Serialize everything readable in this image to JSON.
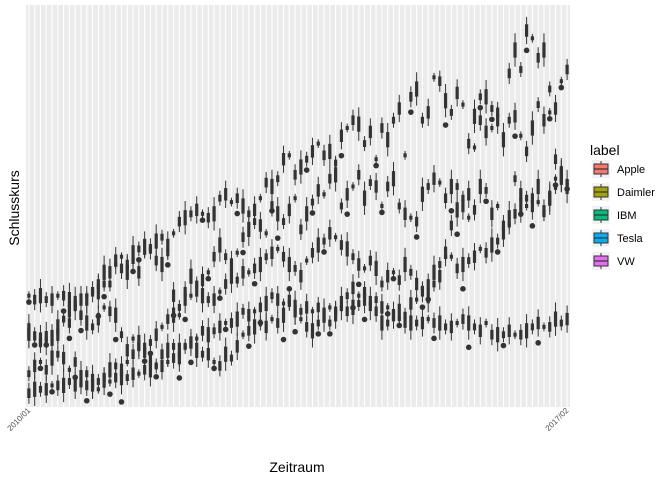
{
  "chart_data": {
    "type": "boxplot",
    "title": "",
    "xlabel": "Zeitraum",
    "ylabel": "Schlusskurs",
    "legend": {
      "title": "label",
      "placement": "right",
      "items": [
        {
          "name": "Apple",
          "color": "#F8766D"
        },
        {
          "name": "Daimler",
          "color": "#A3A500"
        },
        {
          "name": "IBM",
          "color": "#00BF7D"
        },
        {
          "name": "Tesla",
          "color": "#00B0F6"
        },
        {
          "name": "VW",
          "color": "#E76BF3"
        }
      ]
    },
    "grid": true,
    "panel_background": "#EBEBEB",
    "box_color": "#333333",
    "x_categories_count": 94,
    "x_tick_labels_first": "2010/01",
    "x_tick_labels_last": "2017/02",
    "y_range": [
      0,
      100
    ],
    "series": [
      {
        "name": "VW",
        "values": [
          27,
          26,
          27,
          26,
          26,
          27,
          27,
          26,
          25,
          26,
          27,
          28,
          28,
          30,
          33,
          35,
          34,
          33,
          36,
          33,
          38,
          39,
          41,
          42,
          40,
          43,
          46,
          47,
          48,
          49,
          48,
          47,
          48,
          52,
          53,
          51,
          52,
          50,
          48,
          49,
          52,
          56,
          55,
          57,
          62,
          63,
          58,
          60,
          62,
          64,
          66,
          63,
          64,
          61,
          68,
          70,
          72,
          71,
          66,
          69,
          62,
          70,
          67,
          72,
          75,
          63,
          78,
          80,
          72,
          74,
          83,
          82,
          77,
          74,
          79,
          76,
          66,
          73,
          78,
          69,
          70,
          74,
          67,
          72,
          73,
          68,
          64,
          70,
          76,
          72,
          74,
          62,
          58,
          55
        ]
      },
      {
        "name": "Daimler",
        "values": [
          17,
          16,
          15,
          16,
          15,
          17,
          21,
          20,
          25,
          22,
          26,
          28,
          30,
          33,
          30,
          36,
          37,
          35,
          38,
          39,
          40,
          39,
          36,
          35,
          38,
          27,
          22,
          28,
          32,
          30,
          31,
          33,
          37,
          40,
          37,
          35,
          38,
          42,
          44,
          46,
          45,
          43,
          50,
          48,
          46,
          49,
          52,
          44,
          48,
          51,
          54,
          53,
          57,
          58,
          50,
          53,
          55,
          58,
          52,
          56,
          55,
          50,
          55,
          57,
          50,
          48,
          47,
          46,
          53,
          55,
          57,
          56,
          52,
          55,
          55,
          50,
          47,
          49,
          55,
          54,
          48,
          50,
          45,
          47,
          57,
          53,
          50,
          52,
          55,
          48,
          52,
          57,
          59,
          55
        ]
      },
      {
        "name": "Apple",
        "values": [
          7,
          9,
          10,
          8,
          11,
          12,
          11,
          8,
          10,
          6,
          7,
          4,
          3,
          6,
          8,
          9,
          8,
          10,
          12,
          15,
          13,
          11,
          9,
          12,
          13,
          14,
          11,
          14,
          15,
          13,
          12,
          12,
          10,
          9,
          12,
          11,
          14,
          17,
          18,
          19,
          20,
          19,
          21,
          20,
          22,
          25,
          23,
          21,
          19,
          18,
          20,
          22,
          24,
          23,
          25,
          27,
          29,
          27,
          28,
          25,
          26,
          24,
          24,
          22,
          23,
          22,
          25,
          26,
          28,
          27,
          30,
          32,
          37,
          45,
          49,
          52,
          53,
          65,
          72,
          78,
          75,
          72,
          68,
          84,
          90,
          85,
          95,
          93,
          88,
          90,
          80,
          75,
          82,
          85
        ]
      },
      {
        "name": "IBM",
        "values": [
          18,
          17,
          16,
          16,
          17,
          19,
          21,
          23,
          24,
          22,
          20,
          19,
          21,
          24,
          23,
          22,
          17,
          13,
          16,
          14,
          13,
          15,
          17,
          19,
          21,
          22,
          24,
          26,
          27,
          28,
          27,
          26,
          26,
          28,
          30,
          32,
          31,
          33,
          33,
          34,
          35,
          37,
          38,
          39,
          37,
          35,
          34,
          32,
          36,
          38,
          40,
          41,
          43,
          42,
          40,
          39,
          37,
          35,
          34,
          36,
          34,
          30,
          32,
          33,
          31,
          35,
          33,
          30,
          29,
          30,
          33,
          35,
          38,
          37,
          34,
          35,
          36,
          37,
          39,
          38,
          40,
          41,
          43,
          45,
          48,
          50,
          52,
          50,
          51,
          49,
          52,
          55,
          57,
          56
        ]
      },
      {
        "name": "Tesla",
        "values": [
          2,
          3,
          3,
          3,
          4,
          4,
          4,
          5,
          4,
          4,
          4,
          5,
          5,
          5,
          5,
          6,
          6,
          6,
          7,
          7,
          8,
          8,
          9,
          9,
          10,
          11,
          13,
          14,
          15,
          16,
          18,
          17,
          18,
          19,
          20,
          20,
          21,
          23,
          22,
          23,
          24,
          25,
          27,
          26,
          25,
          26,
          24,
          23,
          24,
          23,
          24,
          22,
          20,
          22,
          24,
          23,
          24,
          25,
          26,
          25,
          23,
          20,
          20,
          22,
          21,
          20,
          20,
          20,
          20,
          21,
          20,
          20,
          19,
          19,
          20,
          21,
          20,
          19,
          18,
          20,
          17,
          17,
          17,
          18,
          17,
          17,
          18,
          19,
          20,
          19,
          19,
          21,
          20,
          21
        ]
      }
    ]
  }
}
